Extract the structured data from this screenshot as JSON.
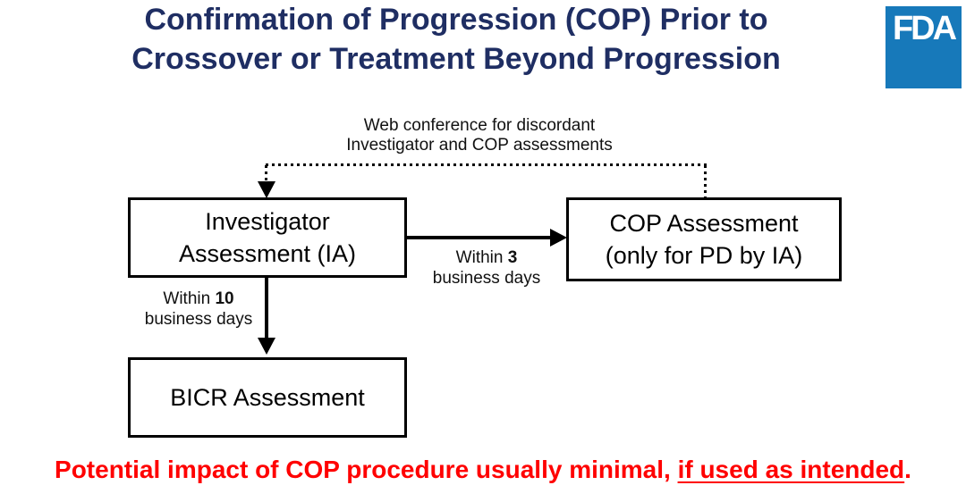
{
  "slide": {
    "title_line1": "Confirmation of Progression (COP) Prior to",
    "title_line2": "Crossover or Treatment Beyond Progression",
    "logo_text": "FDA"
  },
  "connector": {
    "label_line1": "Web conference for discordant",
    "label_line2": "Investigator and COP assessments"
  },
  "boxes": {
    "investigator": {
      "line1": "Investigator",
      "line2": "Assessment (IA)"
    },
    "cop": {
      "line1": "COP Assessment",
      "line2": "(only for PD by IA)"
    },
    "bicr": {
      "line1": "BICR Assessment"
    }
  },
  "edges": {
    "ia_to_cop": {
      "label_prefix": "Within ",
      "label_number": "3",
      "label_line2": "business days"
    },
    "ia_to_bicr": {
      "label_prefix": "Within ",
      "label_number": "10",
      "label_line2": "business days"
    }
  },
  "footer": {
    "text_normal": "Potential impact of COP procedure usually minimal, ",
    "text_underlined": "if used as intended",
    "text_period": "."
  },
  "colors": {
    "title_navy": "#1f2e63",
    "fda_blue": "#1779ba",
    "alert_red": "#ff0000",
    "diagram_black": "#000000"
  }
}
